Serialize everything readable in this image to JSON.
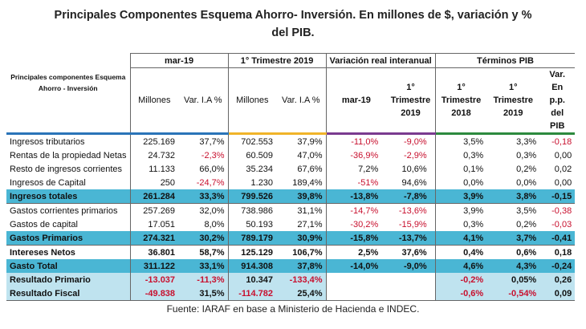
{
  "title_line1": "Principales Componentes Esquema Ahorro- Inversión. En millones de $, variación y %",
  "title_line2": "del PIB.",
  "header": {
    "col_label": "Principales componentes Esquema Ahorro - Inversión",
    "group_mar19": "mar-19",
    "group_t1": "1° Trimestre 2019",
    "group_var": "Variación real interanual",
    "group_pib": "Términos PIB",
    "sub": [
      "Millones",
      "Var. I.A %",
      "Millones",
      "Var. I.A %",
      "mar-19",
      "1° Trimestre 2019",
      "1° Trimestre 2018",
      "1° Trimestre 2019",
      "Var. En p.p. del PIB"
    ]
  },
  "rows": [
    [
      "Ingresos tributarios",
      "225.169",
      "37,7%",
      "702.553",
      "37,9%",
      "-11,0%",
      "-9,0%",
      "3,5%",
      "3,3%",
      "-0,18"
    ],
    [
      "Rentas de la propiedad Netas",
      "24.732",
      "-2,3%",
      "60.509",
      "47,0%",
      "-36,9%",
      "-2,9%",
      "0,3%",
      "0,3%",
      "0,00"
    ],
    [
      "Resto de ingresos corrientes",
      "11.133",
      "66,0%",
      "35.234",
      "67,6%",
      "7,2%",
      "10,6%",
      "0,1%",
      "0,2%",
      "0,02"
    ],
    [
      "Ingresos de Capital",
      "250",
      "-24,7%",
      "1.230",
      "189,4%",
      "-51%",
      "94,6%",
      "0,0%",
      "0,0%",
      "0,00"
    ],
    [
      "Ingresos totales",
      "261.284",
      "33,3%",
      "799.526",
      "39,8%",
      "-13,8%",
      "-7,8%",
      "3,9%",
      "3,8%",
      "-0,15"
    ],
    [
      "Gastos corrientes primarios",
      "257.269",
      "32,0%",
      "738.986",
      "31,1%",
      "-14,7%",
      "-13,6%",
      "3,9%",
      "3,5%",
      "-0,38"
    ],
    [
      "Gastos de capital",
      "17.051",
      "8,0%",
      "50.193",
      "27,1%",
      "-30,2%",
      "-15,9%",
      "0,3%",
      "0,2%",
      "-0,03"
    ],
    [
      "Gastos Primarios",
      "274.321",
      "30,2%",
      "789.179",
      "30,9%",
      "-15,8%",
      "-13,7%",
      "4,1%",
      "3,7%",
      "-0,41"
    ],
    [
      "Intereses Netos",
      "36.801",
      "58,7%",
      "125.129",
      "106,7%",
      "2,5%",
      "37,6%",
      "0,4%",
      "0,6%",
      "0,18"
    ],
    [
      "Gasto Total",
      "311.122",
      "33,1%",
      "914.308",
      "37,8%",
      "-14,0%",
      "-9,0%",
      "4,6%",
      "4,3%",
      "-0,24"
    ],
    [
      "Resultado Primario",
      "-13.037",
      "-11,3%",
      "10.347",
      "-133,4%",
      "",
      "",
      "-0,2%",
      "0,05%",
      "0,26"
    ],
    [
      "Resultado Fiscal",
      "-49.838",
      "31,5%",
      "-114.782",
      "25,4%",
      "",
      "",
      "-0,6%",
      "-0,54%",
      "0,09"
    ]
  ],
  "source": "Fuente: IARAF en base a Ministerio de Hacienda e INDEC."
}
